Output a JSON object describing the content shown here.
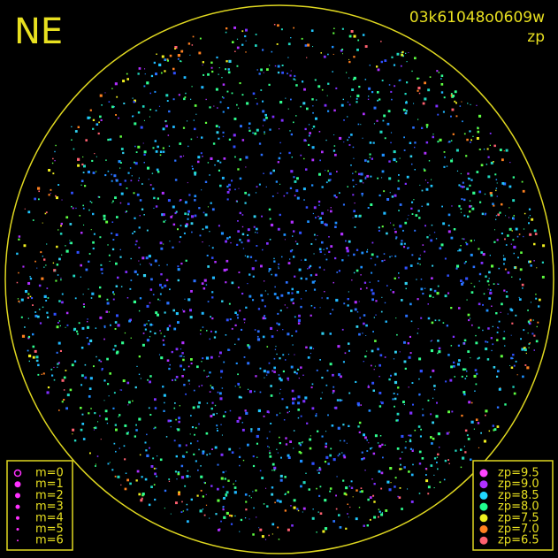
{
  "corner_label": "NE",
  "image_id": "03k61048o0609w",
  "mode": "zp",
  "magnitude_legend": [
    {
      "label": "m=0"
    },
    {
      "label": "m=1"
    },
    {
      "label": "m=2"
    },
    {
      "label": "m=3"
    },
    {
      "label": "m=4"
    },
    {
      "label": "m=5"
    },
    {
      "label": "m=6"
    }
  ],
  "zp_legend": [
    {
      "label": "zp=9.5",
      "color": "#ff44ff"
    },
    {
      "label": "zp=9.0",
      "color": "#b030ff"
    },
    {
      "label": "zp=8.5",
      "color": "#20d8ff"
    },
    {
      "label": "zp=8.0",
      "color": "#20ff90"
    },
    {
      "label": "zp=7.5",
      "color": "#f0f020"
    },
    {
      "label": "zp=7.0",
      "color": "#ff8020"
    },
    {
      "label": "zp=6.5",
      "color": "#ff6070"
    }
  ]
}
